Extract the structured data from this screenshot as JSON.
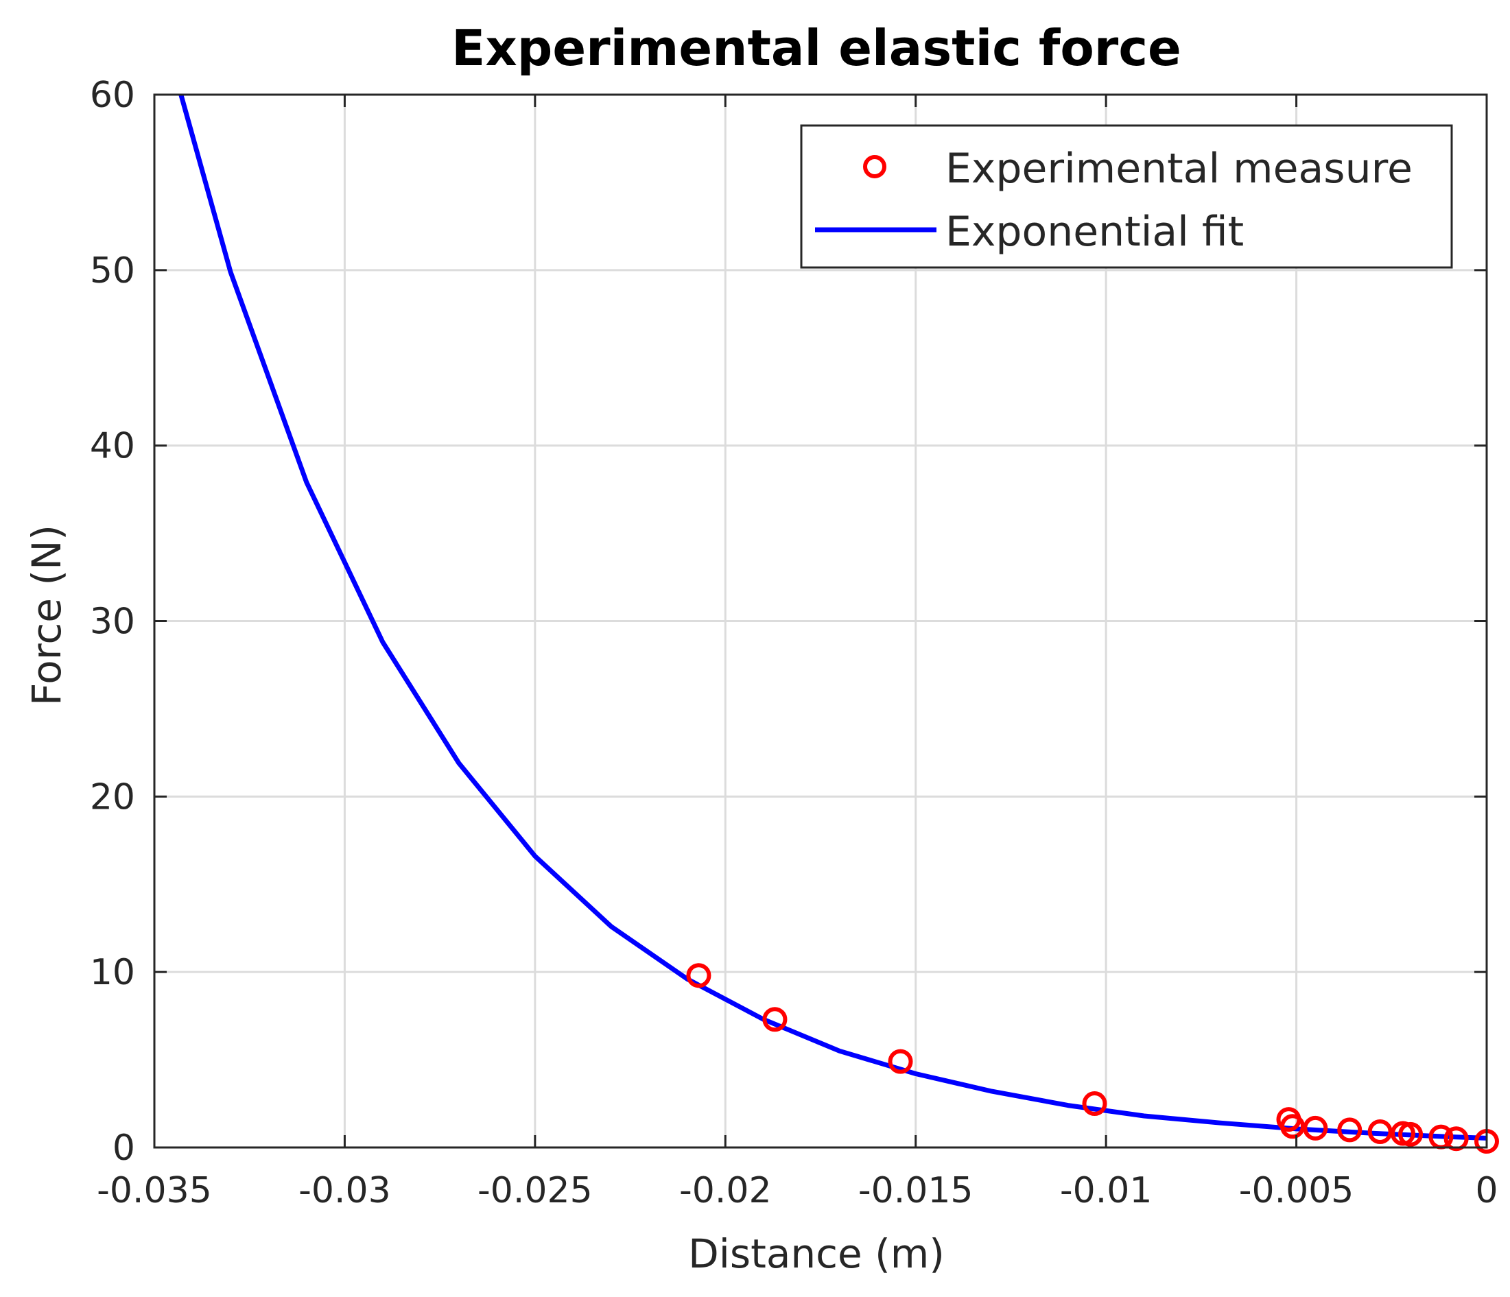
{
  "chart_data": {
    "type": "scatter",
    "title": "Experimental elastic force",
    "xlabel": "Distance (m)",
    "ylabel": "Force (N)",
    "xlim": [
      -0.035,
      0
    ],
    "ylim": [
      0,
      60
    ],
    "xticks": [
      -0.035,
      -0.03,
      -0.025,
      -0.02,
      -0.015,
      -0.01,
      -0.005,
      0
    ],
    "xtick_labels": [
      "-0.035",
      "-0.03",
      "-0.025",
      "-0.02",
      "-0.015",
      "-0.01",
      "-0.005",
      "0"
    ],
    "yticks": [
      0,
      10,
      20,
      30,
      40,
      50,
      60
    ],
    "ytick_labels": [
      "0",
      "10",
      "20",
      "30",
      "40",
      "50",
      "60"
    ],
    "grid": true,
    "legend_position": "top-right",
    "series": [
      {
        "name": "Experimental measure",
        "kind": "markers",
        "marker": "circle",
        "color": "#ff0000",
        "x": [
          -0.0207,
          -0.0187,
          -0.0154,
          -0.0103,
          -0.0052,
          -0.0051,
          -0.0045,
          -0.0036,
          -0.0028,
          -0.0022,
          -0.002,
          -0.0012,
          -0.0008,
          0.0
        ],
        "y": [
          9.8,
          7.3,
          4.9,
          2.5,
          1.6,
          1.2,
          1.1,
          1.0,
          0.9,
          0.8,
          0.75,
          0.6,
          0.5,
          0.35
        ]
      },
      {
        "name": "Exponential fit",
        "kind": "line",
        "color": "#0000ff",
        "x": [
          -0.0343,
          -0.033,
          -0.031,
          -0.029,
          -0.027,
          -0.025,
          -0.023,
          -0.021,
          -0.019,
          -0.017,
          -0.015,
          -0.013,
          -0.011,
          -0.009,
          -0.007,
          -0.005,
          -0.003,
          -0.001,
          0.0
        ],
        "y": [
          60.0,
          49.9,
          37.9,
          28.8,
          21.9,
          16.6,
          12.6,
          9.6,
          7.3,
          5.5,
          4.2,
          3.2,
          2.4,
          1.8,
          1.4,
          1.06,
          0.81,
          0.61,
          0.53
        ]
      }
    ]
  }
}
